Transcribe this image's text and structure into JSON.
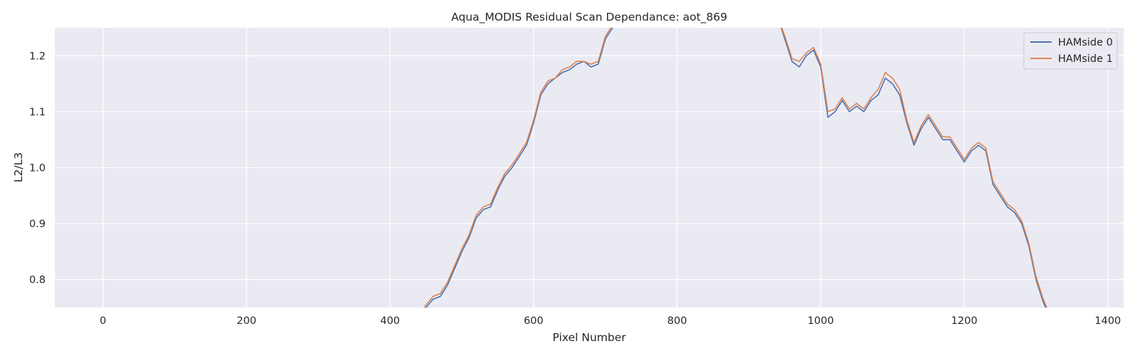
{
  "chart_data": {
    "type": "line",
    "title": "Aqua_MODIS Residual Scan Dependance: aot_869",
    "xlabel": "Pixel Number",
    "ylabel": "L2/L3",
    "xlim": [
      -67,
      1422
    ],
    "ylim": [
      0.75,
      1.25
    ],
    "xticks": [
      0,
      200,
      400,
      600,
      800,
      1000,
      1200,
      1400
    ],
    "yticks": [
      0.8,
      0.9,
      1.0,
      1.1,
      1.2
    ],
    "xtick_labels": [
      "0",
      "200",
      "400",
      "600",
      "800",
      "1000",
      "1200",
      "1400"
    ],
    "ytick_labels": [
      "0.8",
      "0.9",
      "1.0",
      "1.1",
      "1.2"
    ],
    "grid": true,
    "legend_position": "top-right",
    "series": [
      {
        "name": "HAMside 0",
        "color": "#4c72b0",
        "x": [
          440,
          450,
          460,
          470,
          480,
          490,
          500,
          510,
          520,
          530,
          540,
          550,
          560,
          570,
          580,
          590,
          600,
          610,
          620,
          630,
          640,
          650,
          660,
          670,
          680,
          690,
          700,
          710,
          720,
          730,
          940,
          950,
          960,
          970,
          980,
          990,
          1000,
          1010,
          1020,
          1030,
          1040,
          1050,
          1060,
          1070,
          1080,
          1090,
          1100,
          1110,
          1120,
          1130,
          1140,
          1150,
          1160,
          1170,
          1180,
          1190,
          1200,
          1210,
          1220,
          1230,
          1240,
          1250,
          1260,
          1270,
          1280,
          1290,
          1300,
          1310,
          1320
        ],
        "y": [
          0.73,
          0.75,
          0.765,
          0.77,
          0.79,
          0.82,
          0.85,
          0.875,
          0.91,
          0.925,
          0.93,
          0.96,
          0.985,
          1.0,
          1.02,
          1.04,
          1.08,
          1.13,
          1.15,
          1.16,
          1.17,
          1.175,
          1.185,
          1.19,
          1.18,
          1.185,
          1.23,
          1.25,
          1.27,
          1.29,
          1.27,
          1.23,
          1.19,
          1.18,
          1.2,
          1.21,
          1.18,
          1.09,
          1.1,
          1.12,
          1.1,
          1.11,
          1.1,
          1.12,
          1.13,
          1.16,
          1.15,
          1.13,
          1.08,
          1.04,
          1.07,
          1.09,
          1.07,
          1.05,
          1.05,
          1.03,
          1.01,
          1.03,
          1.04,
          1.03,
          0.97,
          0.95,
          0.93,
          0.92,
          0.9,
          0.86,
          0.8,
          0.76,
          0.73
        ]
      },
      {
        "name": "HAMside 1",
        "color": "#dd8452",
        "x": [
          440,
          450,
          460,
          470,
          480,
          490,
          500,
          510,
          520,
          530,
          540,
          550,
          560,
          570,
          580,
          590,
          600,
          610,
          620,
          630,
          640,
          650,
          660,
          670,
          680,
          690,
          700,
          710,
          720,
          730,
          940,
          950,
          960,
          970,
          980,
          990,
          1000,
          1010,
          1020,
          1030,
          1040,
          1050,
          1060,
          1070,
          1080,
          1090,
          1100,
          1110,
          1120,
          1130,
          1140,
          1150,
          1160,
          1170,
          1180,
          1190,
          1200,
          1210,
          1220,
          1230,
          1240,
          1250,
          1260,
          1270,
          1280,
          1290,
          1300,
          1310,
          1320
        ],
        "y": [
          0.73,
          0.755,
          0.77,
          0.775,
          0.795,
          0.825,
          0.855,
          0.88,
          0.915,
          0.93,
          0.935,
          0.965,
          0.99,
          1.005,
          1.025,
          1.045,
          1.085,
          1.135,
          1.155,
          1.16,
          1.175,
          1.18,
          1.19,
          1.19,
          1.185,
          1.19,
          1.235,
          1.255,
          1.27,
          1.29,
          1.27,
          1.235,
          1.195,
          1.19,
          1.205,
          1.215,
          1.185,
          1.1,
          1.105,
          1.125,
          1.105,
          1.115,
          1.105,
          1.125,
          1.14,
          1.17,
          1.16,
          1.14,
          1.085,
          1.045,
          1.075,
          1.095,
          1.075,
          1.055,
          1.055,
          1.035,
          1.015,
          1.035,
          1.045,
          1.035,
          0.975,
          0.955,
          0.935,
          0.925,
          0.905,
          0.865,
          0.805,
          0.765,
          0.735
        ]
      }
    ]
  }
}
